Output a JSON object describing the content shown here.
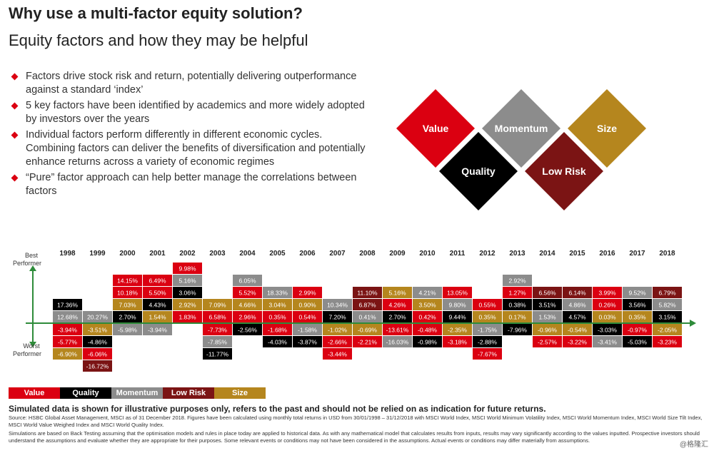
{
  "header": {
    "title": "Why use a multi-factor equity solution?",
    "subtitle": "Equity factors and how they may be helpful"
  },
  "bullets": [
    "Factors drive stock risk and return, potentially delivering outperformance against a standard ‘index’",
    "5 key factors have been identified by academics and more widely adopted by investors over the years",
    "Individual factors perform differently in different economic cycles. Combining factors can deliver the benefits of diversification and potentially enhance returns across a variety of economic regimes",
    "“Pure” factor approach can help better manage the correlations between factors"
  ],
  "factors": [
    {
      "name": "Value",
      "color": "#db0011"
    },
    {
      "name": "Quality",
      "color": "#000000"
    },
    {
      "name": "Momentum",
      "color": "#8c8c8c"
    },
    {
      "name": "Low Risk",
      "color": "#7b1414"
    },
    {
      "name": "Size",
      "color": "#b5861e"
    }
  ],
  "axis": {
    "best": "Best Performer",
    "worst": "Worst Performer"
  },
  "chart_data": {
    "type": "table",
    "years": [
      "1998",
      "1999",
      "2000",
      "2001",
      "2002",
      "2003",
      "2004",
      "2005",
      "2006",
      "2007",
      "2008",
      "2009",
      "2010",
      "2011",
      "2012",
      "2013",
      "2014",
      "2015",
      "2016",
      "2017",
      "2018"
    ],
    "columns": [
      [
        [
          "Quality",
          "17.36%"
        ],
        [
          "Momentum",
          "12.68%"
        ],
        [
          "Value",
          "-3.94%"
        ],
        [
          "Value",
          "-5.77%"
        ],
        [
          "Size",
          "-6.90%"
        ]
      ],
      [
        [
          "Momentum",
          "20.27%"
        ],
        [
          "Size",
          "-3.51%"
        ],
        [
          "Quality",
          "-4.86%"
        ],
        [
          "Value",
          "-6.06%"
        ],
        [
          "Low Risk",
          "-16.72%"
        ]
      ],
      [
        [
          "Value",
          "14.15%"
        ],
        [
          "Value",
          "10.18%"
        ],
        [
          "Size",
          "7.03%"
        ],
        [
          "Quality",
          "2.70%"
        ],
        [
          "Momentum",
          "-5.98%"
        ]
      ],
      [
        [
          "Value",
          "6.49%"
        ],
        [
          "Value",
          "5.50%"
        ],
        [
          "Quality",
          "4.43%"
        ],
        [
          "Size",
          "1.54%"
        ],
        [
          "Momentum",
          "-3.94%"
        ]
      ],
      [
        [
          "Value",
          "9.98%"
        ],
        [
          "Momentum",
          "5.16%"
        ],
        [
          "Quality",
          "3.06%"
        ],
        [
          "Size",
          "2.92%"
        ],
        [
          "Value",
          "1.83%"
        ]
      ],
      [
        [
          "Size",
          "7.09%"
        ],
        [
          "Value",
          "6.58%"
        ],
        [
          "Value",
          "-7.73%"
        ],
        [
          "Momentum",
          "-7.85%"
        ],
        [
          "Quality",
          "-11.77%"
        ]
      ],
      [
        [
          "Momentum",
          "6.05%"
        ],
        [
          "Value",
          "5.52%"
        ],
        [
          "Size",
          "4.66%"
        ],
        [
          "Value",
          "2.96%"
        ],
        [
          "Quality",
          "-2.56%"
        ]
      ],
      [
        [
          "Momentum",
          "18.33%"
        ],
        [
          "Size",
          "3.04%"
        ],
        [
          "Value",
          "0.35%"
        ],
        [
          "Value",
          "-1.68%"
        ],
        [
          "Quality",
          "-4.03%"
        ]
      ],
      [
        [
          "Value",
          "2.99%"
        ],
        [
          "Size",
          "0.90%"
        ],
        [
          "Value",
          "0.54%"
        ],
        [
          "Momentum",
          "-1.58%"
        ],
        [
          "Quality",
          "-3.87%"
        ]
      ],
      [
        [
          "Momentum",
          "10.34%"
        ],
        [
          "Quality",
          "7.20%"
        ],
        [
          "Size",
          "-1.02%"
        ],
        [
          "Value",
          "-2.66%"
        ],
        [
          "Value",
          "-3.44%"
        ]
      ],
      [
        [
          "Low Risk",
          "11.10%"
        ],
        [
          "Low Risk",
          "6.87%"
        ],
        [
          "Momentum",
          "0.41%"
        ],
        [
          "Size",
          "-0.69%"
        ],
        [
          "Value",
          "-2.21%"
        ]
      ],
      [
        [
          "Size",
          "5.16%"
        ],
        [
          "Value",
          "4.26%"
        ],
        [
          "Quality",
          "2.70%"
        ],
        [
          "Value",
          "-13.61%"
        ],
        [
          "Momentum",
          "-16.03%"
        ]
      ],
      [
        [
          "Momentum",
          "4.21%"
        ],
        [
          "Size",
          "3.50%"
        ],
        [
          "Value",
          "0.42%"
        ],
        [
          "Value",
          "-0.48%"
        ],
        [
          "Quality",
          "-0.98%"
        ]
      ],
      [
        [
          "Value",
          "13.05%"
        ],
        [
          "Momentum",
          "9.80%"
        ],
        [
          "Quality",
          "9.44%"
        ],
        [
          "Size",
          "-2.35%"
        ],
        [
          "Value",
          "-3.18%"
        ]
      ],
      [
        [
          "Value",
          "0.55%"
        ],
        [
          "Size",
          "0.35%"
        ],
        [
          "Momentum",
          "-1.75%"
        ],
        [
          "Quality",
          "-2.88%"
        ],
        [
          "Value",
          "-7.67%"
        ]
      ],
      [
        [
          "Momentum",
          "2.92%"
        ],
        [
          "Value",
          "1.27%"
        ],
        [
          "Quality",
          "0.38%"
        ],
        [
          "Size",
          "0.17%"
        ],
        [
          "Quality",
          "-7.96%"
        ]
      ],
      [
        [
          "Low Risk",
          "6.56%"
        ],
        [
          "Quality",
          "3.51%"
        ],
        [
          "Momentum",
          "1.53%"
        ],
        [
          "Size",
          "-0.96%"
        ],
        [
          "Value",
          "-2.57%"
        ]
      ],
      [
        [
          "Low Risk",
          "6.14%"
        ],
        [
          "Momentum",
          "4.86%"
        ],
        [
          "Quality",
          "4.57%"
        ],
        [
          "Size",
          "-0.54%"
        ],
        [
          "Value",
          "-3.22%"
        ]
      ],
      [
        [
          "Value",
          "3.99%"
        ],
        [
          "Value",
          "0.26%"
        ],
        [
          "Size",
          "0.03%"
        ],
        [
          "Quality",
          "-3.03%"
        ],
        [
          "Momentum",
          "-3.41%"
        ]
      ],
      [
        [
          "Momentum",
          "9.52%"
        ],
        [
          "Quality",
          "3.56%"
        ],
        [
          "Size",
          "0.35%"
        ],
        [
          "Value",
          "-0.97%"
        ],
        [
          "Quality",
          "-5.03%"
        ]
      ],
      [
        [
          "Low Risk",
          "6.79%"
        ],
        [
          "Momentum",
          "5.82%"
        ],
        [
          "Quality",
          "3.15%"
        ],
        [
          "Size",
          "-2.05%"
        ],
        [
          "Value",
          "-3.23%"
        ]
      ]
    ]
  },
  "note": "Simulated data is shown for illustrative purposes only, refers to the past and should not be relied on as indication for future returns.",
  "source": "Source: HSBC Global Asset Management, MSCI as of 31 December 2018. Figures have been calculated using monthly total returns in USD from 30/01/1998 – 31/12/2018 with MSCI World Index, MSCI World Minimum Volatility Index, MSCI World Momentum Index, MSCI World Size Tilt Index, MSCI World Value Weighed Index and MSCI World Quality Index.",
  "disclaimer": "Simulations are based on Back Testing assuming that the optimisation models and rules in place today are applied to historical data. As with any mathematical model that calculates results from inputs, results may vary significantly according to the values inputted. Prospective investors should understand the assumptions and evaluate whether they are appropriate for their purposes. Some relevant events or conditions may not have been considered in the assumptions. Actual events or conditions may differ materially from assumptions.",
  "watermark": "@格隆汇"
}
